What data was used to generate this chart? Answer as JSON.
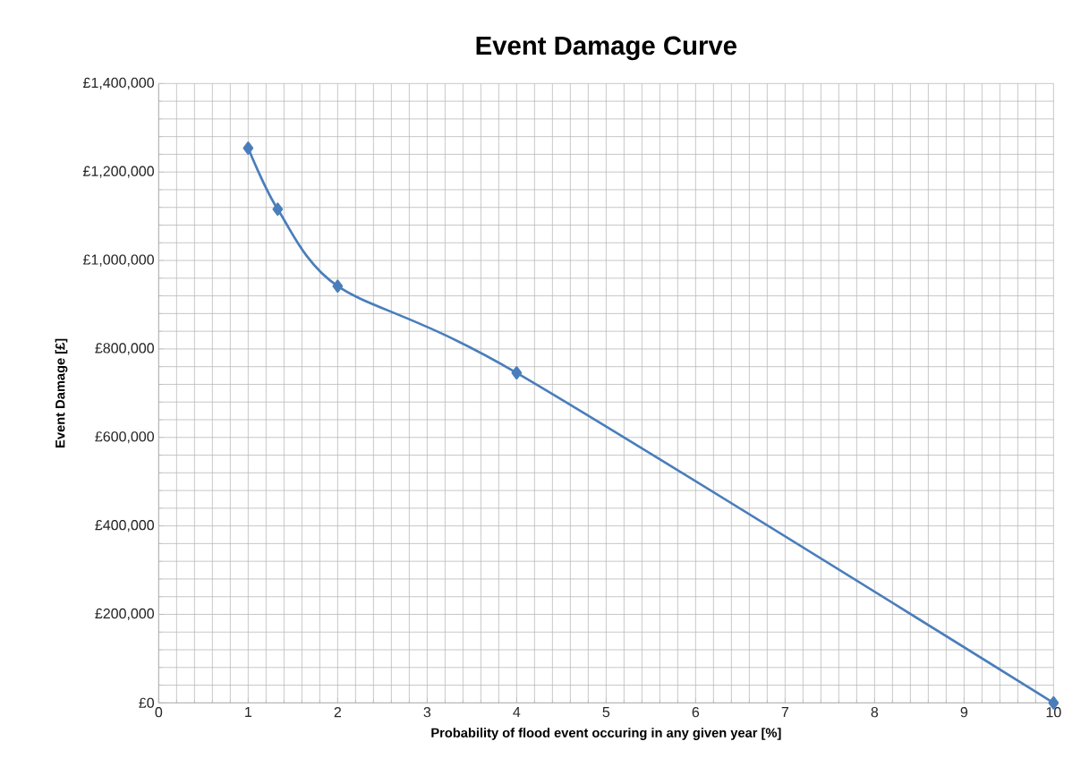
{
  "chart_data": {
    "type": "line",
    "title": "Event Damage Curve",
    "xlabel": "Probability of flood event occuring in any given year [%]",
    "ylabel": "Event Damage [£]",
    "x": [
      1,
      1.33,
      2,
      4,
      10
    ],
    "series": [
      {
        "color": "#4a7ebb",
        "values": [
          1254000,
          1116000,
          942000,
          746000,
          0
        ]
      }
    ],
    "marker": "diamond",
    "line_style": "solid",
    "grid": true,
    "xlim": [
      0,
      10
    ],
    "xticks": [
      0,
      1,
      2,
      3,
      4,
      5,
      6,
      7,
      8,
      9,
      10
    ],
    "ylim": [
      0,
      1400000
    ],
    "yticks": [
      {
        "value": 0,
        "label": "£0"
      },
      {
        "value": 200000,
        "label": "£200,000"
      },
      {
        "value": 400000,
        "label": "£400,000"
      },
      {
        "value": 600000,
        "label": "£600,000"
      },
      {
        "value": 800000,
        "label": "£800,000"
      },
      {
        "value": 1000000,
        "label": "£1,000,000"
      },
      {
        "value": 1200000,
        "label": "£1,200,000"
      },
      {
        "value": 1400000,
        "label": "£1,400,000"
      }
    ]
  }
}
